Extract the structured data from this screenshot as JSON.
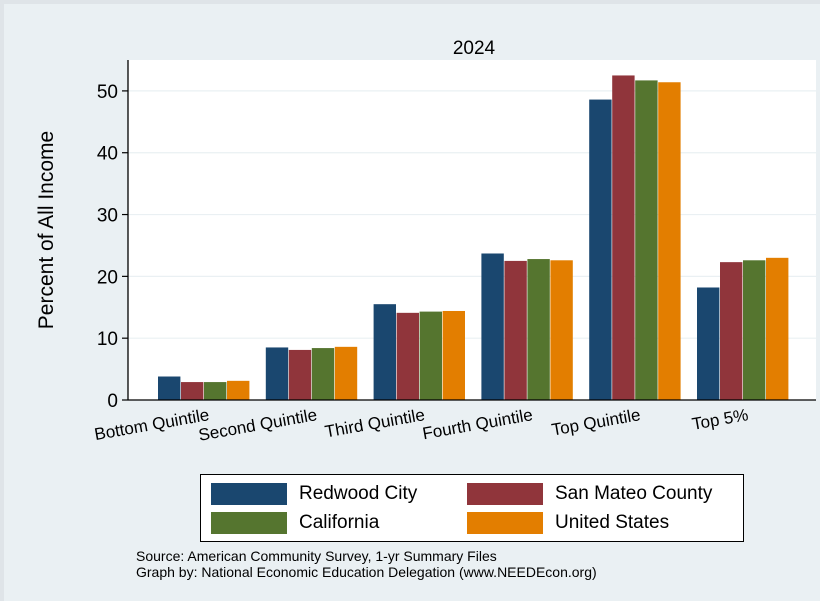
{
  "chart_data": {
    "type": "bar",
    "title": "2024",
    "ylabel": "Percent of All Income",
    "xlabel": "",
    "categories": [
      "Bottom Quintile",
      "Second Quintile",
      "Third Quintile",
      "Fourth Quintile",
      "Top Quintile",
      "Top 5%"
    ],
    "ylim": [
      0,
      55
    ],
    "yticks": [
      0,
      10,
      20,
      30,
      40,
      50
    ],
    "grid": true,
    "legend_position": "bottom",
    "series": [
      {
        "name": "Redwood City",
        "color": "#1a476f",
        "values": [
          3.8,
          8.5,
          15.5,
          23.7,
          48.6,
          18.2
        ]
      },
      {
        "name": "San Mateo County",
        "color": "#90353b",
        "values": [
          2.9,
          8.1,
          14.1,
          22.5,
          52.5,
          22.3
        ]
      },
      {
        "name": "California",
        "color": "#55752f",
        "values": [
          2.9,
          8.4,
          14.3,
          22.8,
          51.7,
          22.6
        ]
      },
      {
        "name": "United States",
        "color": "#e37e00",
        "values": [
          3.1,
          8.6,
          14.4,
          22.6,
          51.4,
          23.0
        ]
      }
    ]
  },
  "notes": {
    "source": "Source: American Community Survey, 1-yr Summary Files",
    "graph_by": "Graph by: National Economic Education Delegation (www.NEEDEcon.org)"
  }
}
